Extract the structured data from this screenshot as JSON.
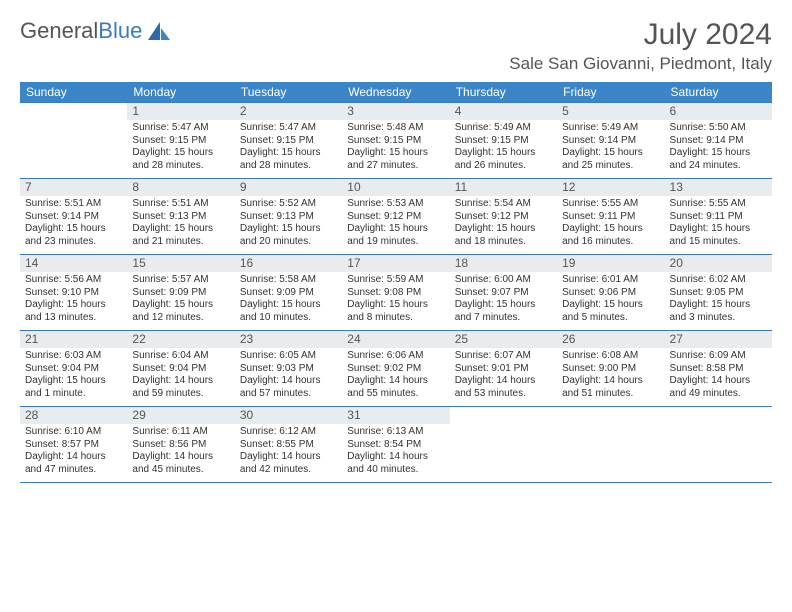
{
  "brand": {
    "word1": "General",
    "word2": "Blue"
  },
  "title": "July 2024",
  "location": "Sale San Giovanni, Piedmont, Italy",
  "colors": {
    "header_bg": "#3a86c8",
    "header_text": "#ffffff",
    "divider": "#3a7abf",
    "daynum_bg": "#e9ecef",
    "text": "#333333",
    "brand_gray": "#555555",
    "brand_blue": "#3a7abf",
    "page_bg": "#ffffff"
  },
  "typography": {
    "title_fontsize": 30,
    "location_fontsize": 17,
    "dow_fontsize": 12,
    "daynum_fontsize": 12,
    "body_fontsize": 10
  },
  "daysOfWeek": [
    "Sunday",
    "Monday",
    "Tuesday",
    "Wednesday",
    "Thursday",
    "Friday",
    "Saturday"
  ],
  "startDayIndex": 1,
  "daysInMonth": 31,
  "days": [
    {
      "n": 1,
      "sunrise": "5:47 AM",
      "sunset": "9:15 PM",
      "daylight": "15 hours and 28 minutes."
    },
    {
      "n": 2,
      "sunrise": "5:47 AM",
      "sunset": "9:15 PM",
      "daylight": "15 hours and 28 minutes."
    },
    {
      "n": 3,
      "sunrise": "5:48 AM",
      "sunset": "9:15 PM",
      "daylight": "15 hours and 27 minutes."
    },
    {
      "n": 4,
      "sunrise": "5:49 AM",
      "sunset": "9:15 PM",
      "daylight": "15 hours and 26 minutes."
    },
    {
      "n": 5,
      "sunrise": "5:49 AM",
      "sunset": "9:14 PM",
      "daylight": "15 hours and 25 minutes."
    },
    {
      "n": 6,
      "sunrise": "5:50 AM",
      "sunset": "9:14 PM",
      "daylight": "15 hours and 24 minutes."
    },
    {
      "n": 7,
      "sunrise": "5:51 AM",
      "sunset": "9:14 PM",
      "daylight": "15 hours and 23 minutes."
    },
    {
      "n": 8,
      "sunrise": "5:51 AM",
      "sunset": "9:13 PM",
      "daylight": "15 hours and 21 minutes."
    },
    {
      "n": 9,
      "sunrise": "5:52 AM",
      "sunset": "9:13 PM",
      "daylight": "15 hours and 20 minutes."
    },
    {
      "n": 10,
      "sunrise": "5:53 AM",
      "sunset": "9:12 PM",
      "daylight": "15 hours and 19 minutes."
    },
    {
      "n": 11,
      "sunrise": "5:54 AM",
      "sunset": "9:12 PM",
      "daylight": "15 hours and 18 minutes."
    },
    {
      "n": 12,
      "sunrise": "5:55 AM",
      "sunset": "9:11 PM",
      "daylight": "15 hours and 16 minutes."
    },
    {
      "n": 13,
      "sunrise": "5:55 AM",
      "sunset": "9:11 PM",
      "daylight": "15 hours and 15 minutes."
    },
    {
      "n": 14,
      "sunrise": "5:56 AM",
      "sunset": "9:10 PM",
      "daylight": "15 hours and 13 minutes."
    },
    {
      "n": 15,
      "sunrise": "5:57 AM",
      "sunset": "9:09 PM",
      "daylight": "15 hours and 12 minutes."
    },
    {
      "n": 16,
      "sunrise": "5:58 AM",
      "sunset": "9:09 PM",
      "daylight": "15 hours and 10 minutes."
    },
    {
      "n": 17,
      "sunrise": "5:59 AM",
      "sunset": "9:08 PM",
      "daylight": "15 hours and 8 minutes."
    },
    {
      "n": 18,
      "sunrise": "6:00 AM",
      "sunset": "9:07 PM",
      "daylight": "15 hours and 7 minutes."
    },
    {
      "n": 19,
      "sunrise": "6:01 AM",
      "sunset": "9:06 PM",
      "daylight": "15 hours and 5 minutes."
    },
    {
      "n": 20,
      "sunrise": "6:02 AM",
      "sunset": "9:05 PM",
      "daylight": "15 hours and 3 minutes."
    },
    {
      "n": 21,
      "sunrise": "6:03 AM",
      "sunset": "9:04 PM",
      "daylight": "15 hours and 1 minute."
    },
    {
      "n": 22,
      "sunrise": "6:04 AM",
      "sunset": "9:04 PM",
      "daylight": "14 hours and 59 minutes."
    },
    {
      "n": 23,
      "sunrise": "6:05 AM",
      "sunset": "9:03 PM",
      "daylight": "14 hours and 57 minutes."
    },
    {
      "n": 24,
      "sunrise": "6:06 AM",
      "sunset": "9:02 PM",
      "daylight": "14 hours and 55 minutes."
    },
    {
      "n": 25,
      "sunrise": "6:07 AM",
      "sunset": "9:01 PM",
      "daylight": "14 hours and 53 minutes."
    },
    {
      "n": 26,
      "sunrise": "6:08 AM",
      "sunset": "9:00 PM",
      "daylight": "14 hours and 51 minutes."
    },
    {
      "n": 27,
      "sunrise": "6:09 AM",
      "sunset": "8:58 PM",
      "daylight": "14 hours and 49 minutes."
    },
    {
      "n": 28,
      "sunrise": "6:10 AM",
      "sunset": "8:57 PM",
      "daylight": "14 hours and 47 minutes."
    },
    {
      "n": 29,
      "sunrise": "6:11 AM",
      "sunset": "8:56 PM",
      "daylight": "14 hours and 45 minutes."
    },
    {
      "n": 30,
      "sunrise": "6:12 AM",
      "sunset": "8:55 PM",
      "daylight": "14 hours and 42 minutes."
    },
    {
      "n": 31,
      "sunrise": "6:13 AM",
      "sunset": "8:54 PM",
      "daylight": "14 hours and 40 minutes."
    }
  ],
  "labels": {
    "sunrise_prefix": "Sunrise: ",
    "sunset_prefix": "Sunset: ",
    "daylight_prefix": "Daylight: "
  }
}
